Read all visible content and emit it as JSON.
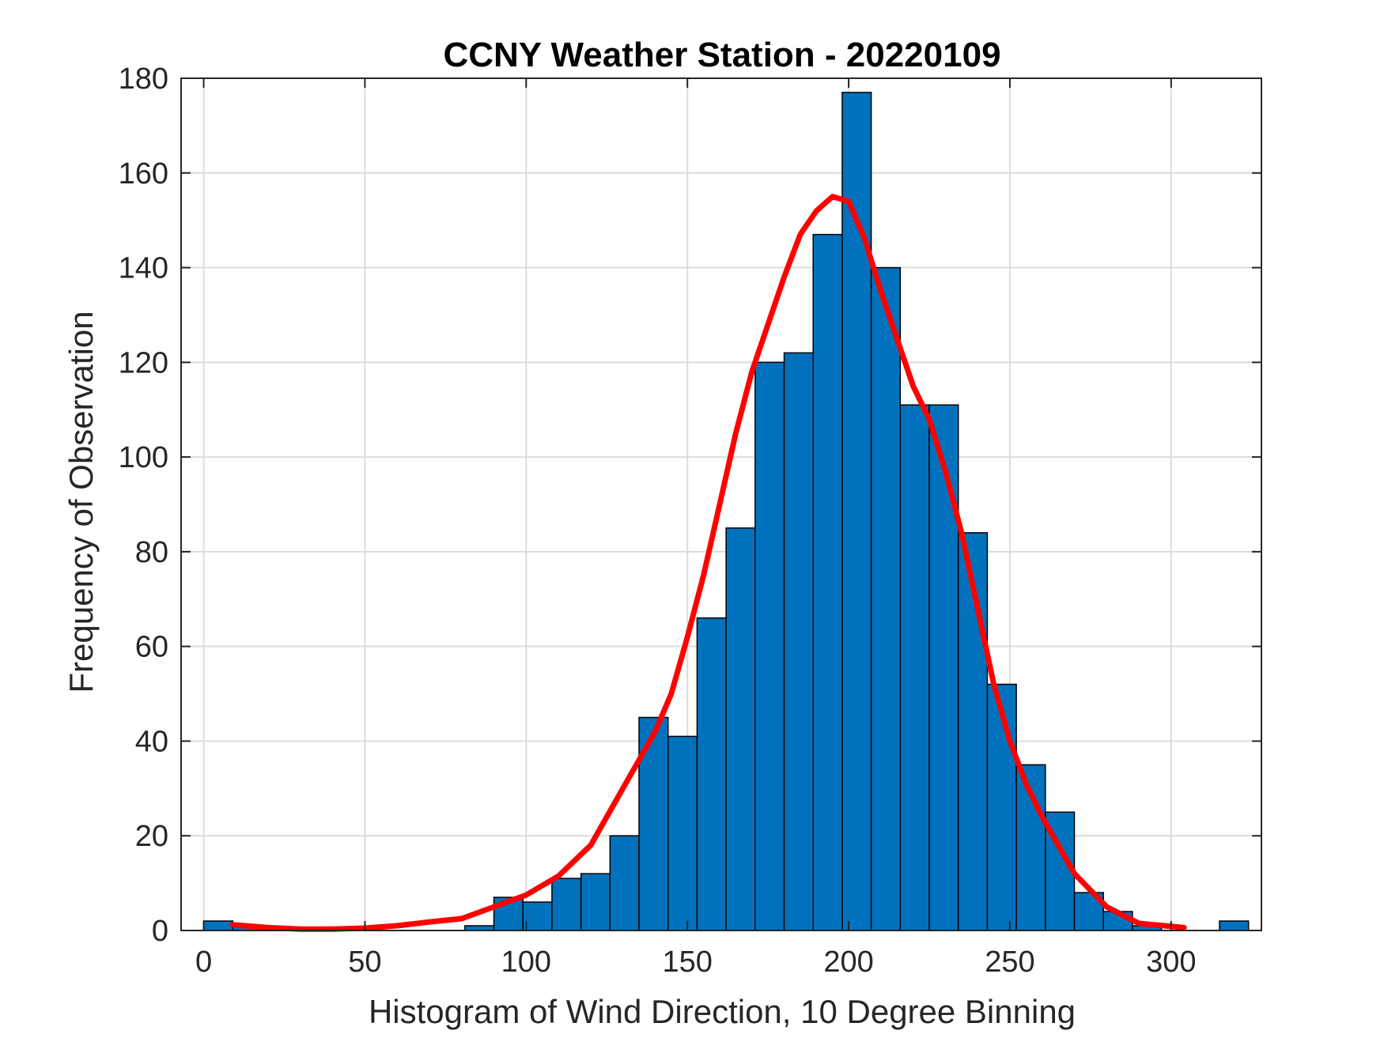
{
  "chart_data": {
    "type": "bar",
    "title": "CCNY Weather Station - 20220109",
    "xlabel": "Histogram of Wind Direction, 10 Degree Binning",
    "ylabel": "Frequency of Observation",
    "xlim": [
      -7,
      328
    ],
    "ylim": [
      0,
      180
    ],
    "grid": true,
    "bin_width": 9,
    "x_ticks": [
      0,
      50,
      100,
      150,
      200,
      250,
      300
    ],
    "y_ticks": [
      0,
      20,
      40,
      60,
      80,
      100,
      120,
      140,
      160,
      180
    ],
    "bin_starts": [
      0,
      9,
      18,
      27,
      36,
      45,
      54,
      63,
      72,
      81,
      90,
      99,
      108,
      117,
      126,
      135,
      144,
      153,
      162,
      171,
      180,
      189,
      198,
      207,
      216,
      225,
      234,
      243,
      252,
      261,
      270,
      279,
      288,
      297,
      306,
      315
    ],
    "values": [
      2,
      1,
      0,
      0,
      0,
      0,
      0,
      0,
      0,
      1,
      7,
      6,
      11,
      12,
      20,
      45,
      41,
      66,
      85,
      120,
      122,
      147,
      177,
      140,
      111,
      111,
      84,
      52,
      35,
      25,
      8,
      4,
      1,
      0,
      0,
      2
    ],
    "bar_color": "#0072BD",
    "fit": {
      "color": "#FF0000",
      "x": [
        9,
        20,
        30,
        40,
        50,
        60,
        70,
        80,
        90,
        100,
        110,
        120,
        130,
        140,
        145,
        150,
        155,
        160,
        165,
        170,
        175,
        180,
        185,
        190,
        195,
        200,
        205,
        210,
        215,
        220,
        225,
        230,
        235,
        240,
        245,
        250,
        255,
        260,
        265,
        270,
        280,
        290,
        304
      ],
      "y": [
        1.2,
        0.6,
        0.3,
        0.3,
        0.5,
        1.0,
        1.8,
        2.5,
        5.0,
        7.5,
        11.5,
        18,
        30,
        42,
        50,
        62,
        75,
        90,
        105,
        118,
        128,
        138,
        147,
        152,
        155,
        154,
        146,
        135,
        125,
        115,
        108,
        97,
        84,
        68,
        52,
        40,
        31,
        24,
        18,
        12,
        5,
        1.5,
        0.6
      ]
    }
  }
}
